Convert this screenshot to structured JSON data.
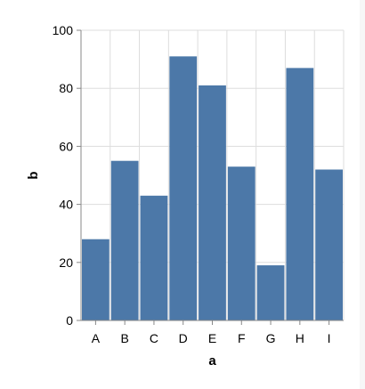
{
  "chart_data": {
    "type": "bar",
    "categories": [
      "A",
      "B",
      "C",
      "D",
      "E",
      "F",
      "G",
      "H",
      "I"
    ],
    "values": [
      28,
      55,
      43,
      91,
      81,
      53,
      19,
      87,
      52
    ],
    "xlabel": "a",
    "ylabel": "b",
    "ylim": [
      0,
      100
    ],
    "yticks": [
      0,
      20,
      40,
      60,
      80,
      100
    ],
    "grid": true,
    "bar_color": "#4c78a8",
    "grid_color": "#dddddd",
    "axis_color": "#888888"
  }
}
